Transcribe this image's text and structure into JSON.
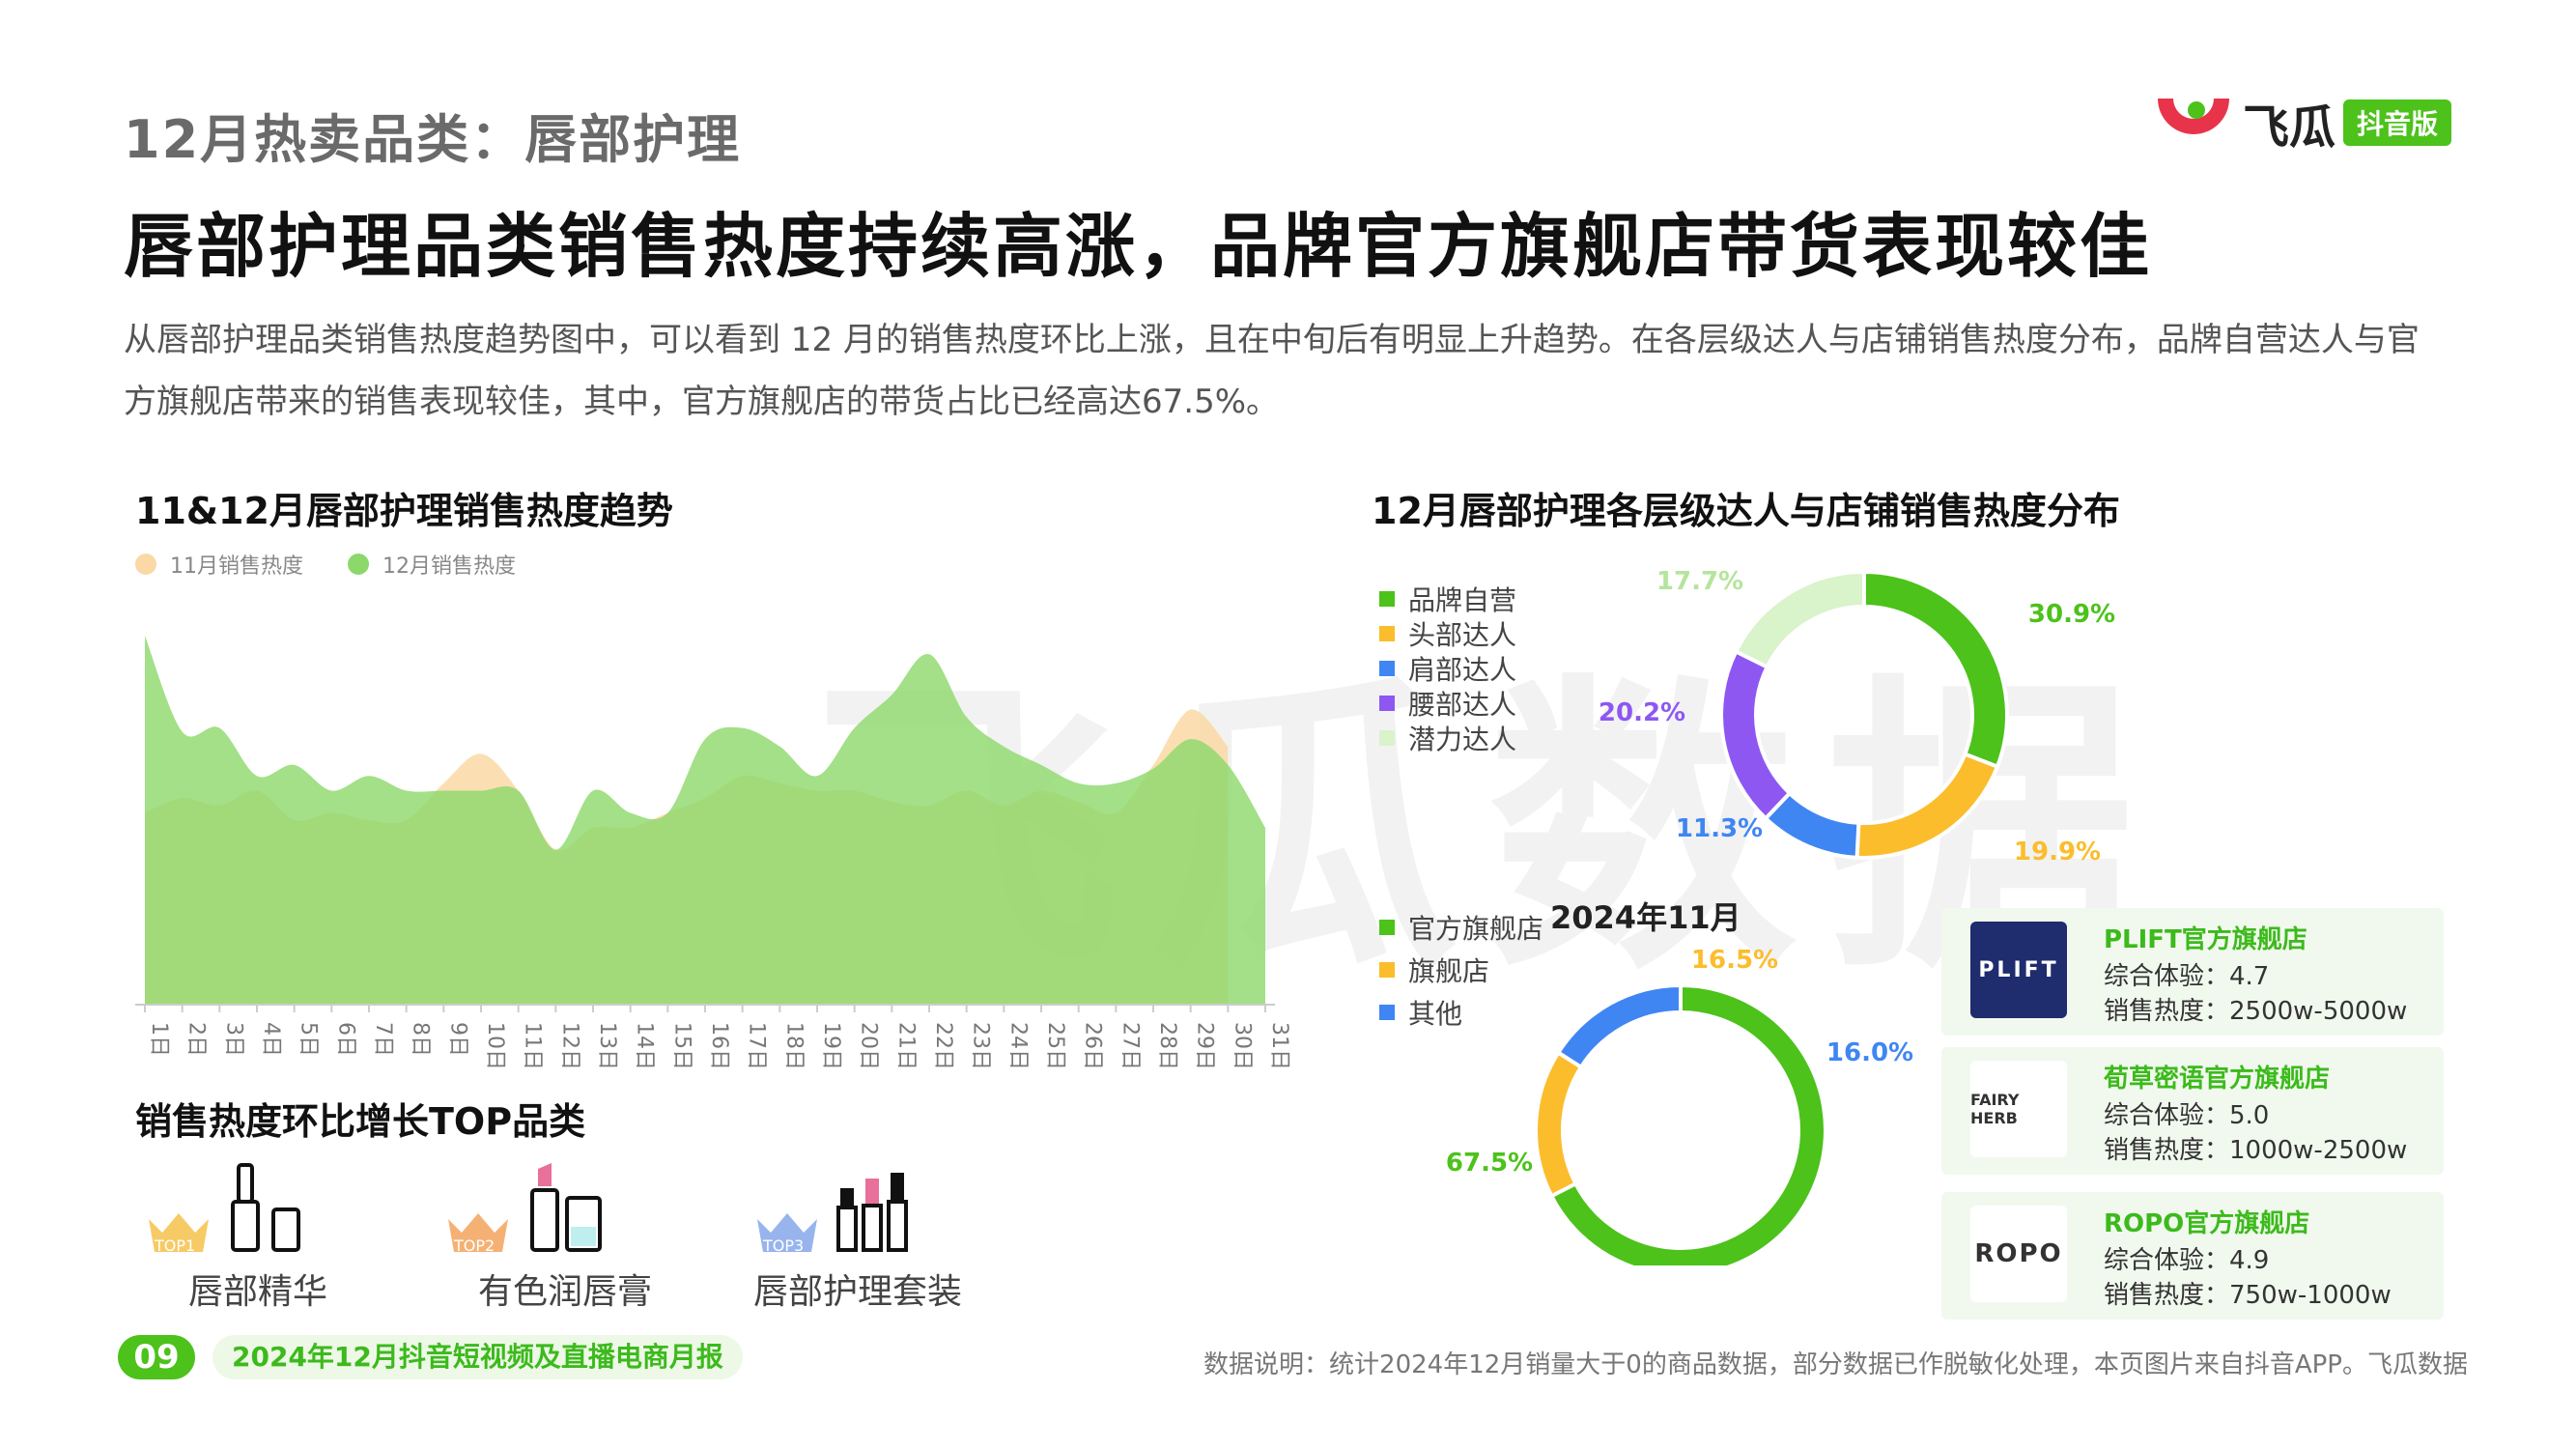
{
  "header": {
    "subtitle": "12月热卖品类：唇部护理",
    "title": "唇部护理品类销售热度持续高涨，品牌官方旗舰店带货表现较佳",
    "intro": "从唇部护理品类销售热度趋势图中，可以看到 12 月的销售热度环比上涨，且在中旬后有明显上升趋势。在各层级达人与店铺销售热度分布，品牌自营达人与官方旗舰店带来的销售表现较佳，其中，官方旗舰店的带货占比已经高达67.5%。",
    "logo_text": "飞瓜",
    "logo_badge": "抖音版"
  },
  "watermark": "飞瓜数据",
  "colors": {
    "brand_green": "#4cc21b",
    "nov_series": "#fad9a6",
    "dec_series": "#8cd86a",
    "orange": "#fbbd2c",
    "blue": "#3f86f3",
    "purple": "#8e57f2",
    "light_green": "#d9f3ca"
  },
  "trend": {
    "title": "11&12月唇部护理销售热度趋势"
  },
  "kol": {
    "title": "12月唇部护理各层级达人与店铺销售热度分布"
  },
  "store": {
    "center_label": "2024年11月"
  },
  "growth": {
    "title": "销售热度环比增长TOP品类",
    "items": [
      {
        "rank": "TOP1",
        "name": "唇部精华",
        "rank_color": "#f4c14a"
      },
      {
        "rank": "TOP2",
        "name": "有色润唇膏",
        "rank_color": "#f3a35c"
      },
      {
        "rank": "TOP3",
        "name": "唇部护理套装",
        "rank_color": "#86a7ea"
      }
    ]
  },
  "stores": [
    {
      "name": "PLIFT官方旗舰店",
      "score_label": "综合体验：4.7",
      "heat_label": "销售热度：2500w-5000w",
      "logo_text": "PLIFT",
      "logo_bg": "#1f2c6e",
      "logo_fg": "#ffffff"
    },
    {
      "name": "荀草密语官方旗舰店",
      "score_label": "综合体验：5.0",
      "heat_label": "销售热度：1000w-2500w",
      "logo_text": "FAIRY HERB",
      "logo_bg": "#ffffff",
      "logo_fg": "#333333"
    },
    {
      "name": "ROPO官方旗舰店",
      "score_label": "综合体验：4.9",
      "heat_label": "销售热度：750w-1000w",
      "logo_text": "ROPO",
      "logo_bg": "#ffffff",
      "logo_fg": "#333333"
    }
  ],
  "footer": {
    "page_number": "09",
    "report_title": "2024年12月抖音短视频及直播电商月报",
    "note": "数据说明：统计2024年12月销量大于0的商品数据，部分数据已作脱敏化处理，本页图片来自抖音APP。飞瓜数据"
  },
  "chart_data": [
    {
      "type": "area",
      "title": "11&12月唇部护理销售热度趋势",
      "x": [
        "1日",
        "2日",
        "3日",
        "4日",
        "5日",
        "6日",
        "7日",
        "8日",
        "9日",
        "10日",
        "11日",
        "12日",
        "13日",
        "14日",
        "15日",
        "16日",
        "17日",
        "18日",
        "19日",
        "20日",
        "21日",
        "22日",
        "23日",
        "24日",
        "25日",
        "26日",
        "27日",
        "28日",
        "29日",
        "30日",
        "31日"
      ],
      "series": [
        {
          "name": "11月销售热度",
          "color": "#fad9a6",
          "values": [
            52,
            56,
            54,
            58,
            50,
            52,
            50,
            50,
            60,
            68,
            58,
            42,
            48,
            48,
            52,
            56,
            62,
            60,
            58,
            58,
            55,
            54,
            58,
            54,
            58,
            55,
            52,
            65,
            80,
            70,
            null
          ]
        },
        {
          "name": "12月销售热度",
          "color": "#8cd86a",
          "values": [
            100,
            74,
            75,
            62,
            65,
            58,
            62,
            58,
            58,
            58,
            58,
            42,
            58,
            52,
            52,
            72,
            75,
            70,
            62,
            75,
            84,
            95,
            78,
            70,
            65,
            60,
            60,
            64,
            72,
            65,
            48
          ]
        }
      ],
      "ylim": [
        0,
        110
      ],
      "grid": false,
      "legend": "top-left"
    },
    {
      "type": "pie",
      "title": "12月唇部护理各层级达人与店铺销售热度分布",
      "categories": [
        "品牌自营",
        "头部达人",
        "肩部达人",
        "腰部达人",
        "潜力达人"
      ],
      "values": [
        30.9,
        19.9,
        11.3,
        20.2,
        17.7
      ],
      "labels": [
        "30.9%",
        "19.9%",
        "11.3%",
        "20.2%",
        "17.7%"
      ],
      "colors": [
        "#4cc21b",
        "#fbbd2c",
        "#3f86f3",
        "#8e57f2",
        "#d9f3ca"
      ],
      "legend": "left"
    },
    {
      "type": "pie",
      "title": "2024年11月",
      "categories": [
        "官方旗舰店",
        "旗舰店",
        "其他"
      ],
      "values": [
        67.5,
        16.5,
        16.0
      ],
      "labels": [
        "67.5%",
        "16.5%",
        "16.0%"
      ],
      "colors": [
        "#4cc21b",
        "#fbbd2c",
        "#3f86f3"
      ],
      "legend": "top-left"
    }
  ]
}
